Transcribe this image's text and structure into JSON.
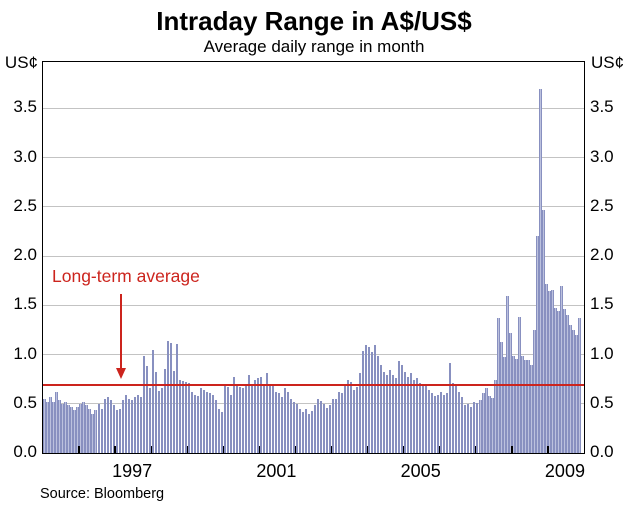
{
  "title": "Intraday Range in A$/US$",
  "subtitle": "Average daily range in month",
  "source": "Source: Bloomberg",
  "chart_data": {
    "type": "bar",
    "title": "Intraday Range in A$/US$",
    "subtitle": "Average daily range in month",
    "ylabel_left": "US¢",
    "ylabel_right": "US¢",
    "frequency": "monthly",
    "x_start": "1995-01",
    "x_end": "2009-11",
    "ylim": [
      0,
      3.97
    ],
    "yticks": [
      "0.0",
      "0.5",
      "1.0",
      "1.5",
      "2.0",
      "2.5",
      "3.0",
      "3.5"
    ],
    "xtick_label_years": [
      "1997",
      "2001",
      "2005",
      "2009"
    ],
    "grid": true,
    "legend_position": "none",
    "average_line": {
      "label": "Long-term average",
      "value": 0.69
    },
    "colors": {
      "bar_fill": "#bcc1de",
      "bar_edge": "#8890c0",
      "average_line": "#cc241d",
      "gridline": "#c3c3c3",
      "axis": "#000000"
    },
    "values_by_year": {
      "1995": [
        0.55,
        0.52,
        0.57,
        0.52,
        0.62,
        0.54,
        0.5,
        0.52,
        0.49,
        0.47,
        0.44,
        0.47
      ],
      "1996": [
        0.5,
        0.52,
        0.49,
        0.45,
        0.4,
        0.44,
        0.5,
        0.45,
        0.55,
        0.57,
        0.54,
        0.49
      ],
      "1997": [
        0.44,
        0.45,
        0.54,
        0.59,
        0.55,
        0.54,
        0.57,
        0.59,
        0.57,
        0.98,
        0.88,
        0.66
      ],
      "1998": [
        1.05,
        0.82,
        0.63,
        0.66,
        0.85,
        1.14,
        1.12,
        0.83,
        1.11,
        0.74,
        0.73,
        0.72
      ],
      "1999": [
        0.71,
        0.62,
        0.59,
        0.58,
        0.66,
        0.64,
        0.62,
        0.61,
        0.59,
        0.54,
        0.45,
        0.42
      ],
      "2000": [
        0.69,
        0.67,
        0.59,
        0.77,
        0.7,
        0.67,
        0.66,
        0.69,
        0.79,
        0.7,
        0.74,
        0.76
      ],
      "2001": [
        0.77,
        0.69,
        0.81,
        0.69,
        0.68,
        0.62,
        0.61,
        0.57,
        0.66,
        0.62,
        0.55,
        0.52
      ],
      "2002": [
        0.5,
        0.45,
        0.42,
        0.45,
        0.4,
        0.43,
        0.49,
        0.55,
        0.53,
        0.5,
        0.46,
        0.49
      ],
      "2003": [
        0.55,
        0.55,
        0.62,
        0.61,
        0.69,
        0.74,
        0.72,
        0.64,
        0.67,
        0.81,
        1.04,
        1.1
      ],
      "2004": [
        1.08,
        1.03,
        1.1,
        0.99,
        0.89,
        0.82,
        0.79,
        0.84,
        0.79,
        0.76,
        0.93,
        0.89
      ],
      "2005": [
        0.82,
        0.77,
        0.81,
        0.74,
        0.76,
        0.71,
        0.68,
        0.69,
        0.64,
        0.61,
        0.58,
        0.59
      ],
      "2006": [
        0.62,
        0.59,
        0.61,
        0.91,
        0.71,
        0.68,
        0.62,
        0.57,
        0.49,
        0.5,
        0.47,
        0.52
      ],
      "2007": [
        0.51,
        0.54,
        0.61,
        0.66,
        0.58,
        0.56,
        0.74,
        1.37,
        1.13,
        0.97,
        1.59,
        1.22
      ],
      "2008": [
        0.99,
        0.95,
        1.38,
        0.99,
        0.94,
        0.94,
        0.89,
        1.25,
        2.2,
        3.7,
        2.47,
        1.72
      ],
      "2009": [
        1.64,
        1.66,
        1.47,
        1.44,
        1.7,
        1.46,
        1.4,
        1.3,
        1.25,
        1.2,
        1.37
      ]
    }
  }
}
